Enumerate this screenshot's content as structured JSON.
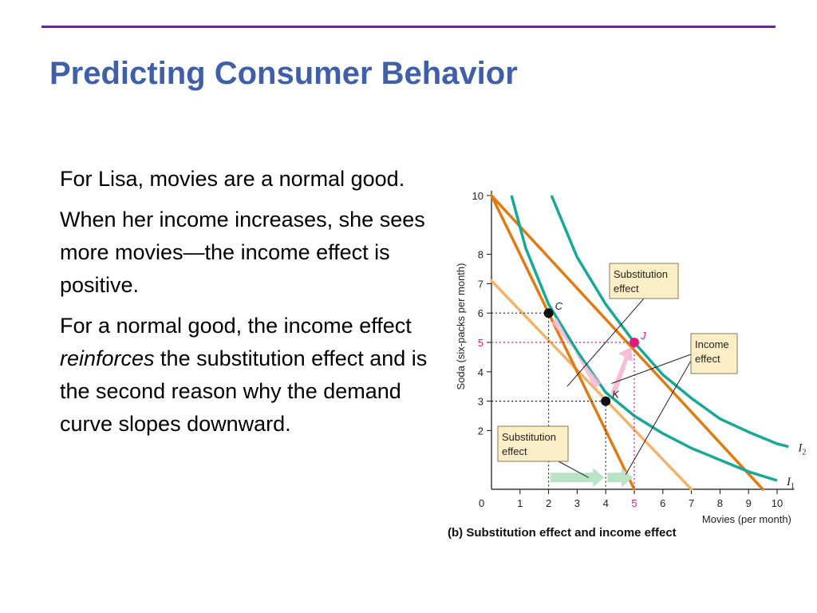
{
  "slide": {
    "title": "Predicting Consumer Behavior",
    "paragraphs": [
      {
        "text": "For Lisa, movies are a normal good."
      },
      {
        "text": "When her income increases, she sees more movies—the income effect is positive."
      },
      {
        "before": "For a normal good, the income effect ",
        "emphasis": "reinforces",
        "after": " the substitution effect and is the second reason why the demand curve slopes downward."
      }
    ],
    "caption": "(b) Substitution effect and income effect"
  },
  "colors": {
    "title": "#3f5fa9",
    "rule": "#5b2d8e",
    "budget_line": "#e07b14",
    "budget_line_light": "#f2b36a",
    "indifference_curve": "#17a898",
    "highlight": "#e0197d",
    "label_box": "#fcefc8",
    "sub_arrow": "#b9e2c6",
    "inc_arrow": "#f4b8d3"
  },
  "chart_data": {
    "type": "line",
    "xlabel": "Movies (per month)",
    "ylabel": "Soda (six-packs per month)",
    "xlim": [
      0,
      10
    ],
    "ylim": [
      0,
      10
    ],
    "x_ticks": [
      "0",
      "1",
      "2",
      "3",
      "4",
      "5",
      "6",
      "7",
      "8",
      "9",
      "10"
    ],
    "y_ticks": [
      "2",
      "3",
      "4",
      "5",
      "6",
      "7",
      "8",
      "10"
    ],
    "highlight_tick": "5",
    "budget_lines": [
      {
        "points": [
          [
            0,
            10
          ],
          [
            5,
            0
          ]
        ]
      },
      {
        "points": [
          [
            0,
            10
          ],
          [
            9.5,
            0
          ]
        ]
      },
      {
        "points": [
          [
            0,
            7.1
          ],
          [
            7,
            0
          ]
        ]
      }
    ],
    "indifference_curves": [
      {
        "name": "I1",
        "points": [
          [
            0.7,
            10
          ],
          [
            1.2,
            8.2
          ],
          [
            2,
            6.3
          ],
          [
            3,
            4.7
          ],
          [
            4,
            3.3
          ],
          [
            5,
            2.5
          ],
          [
            6,
            1.9
          ],
          [
            7,
            1.4
          ],
          [
            8,
            1.0
          ],
          [
            9,
            0.6
          ],
          [
            10,
            0.3
          ]
        ]
      },
      {
        "name": "I2",
        "points": [
          [
            2.1,
            10
          ],
          [
            3,
            7.9
          ],
          [
            4,
            6.3
          ],
          [
            5,
            5.0
          ],
          [
            6,
            3.9
          ],
          [
            7,
            3.1
          ],
          [
            8,
            2.4
          ],
          [
            9,
            1.95
          ],
          [
            10,
            1.55
          ],
          [
            10.4,
            1.45
          ]
        ]
      }
    ],
    "points": [
      {
        "name": "C",
        "x": 2,
        "y": 6
      },
      {
        "name": "K",
        "x": 4,
        "y": 3
      },
      {
        "name": "J",
        "x": 5,
        "y": 5
      }
    ],
    "annotations": [
      {
        "text": [
          "Substitution",
          "effect"
        ]
      },
      {
        "text": [
          "Income",
          "effect"
        ]
      },
      {
        "text": [
          "Substitution",
          "effect"
        ]
      }
    ]
  }
}
